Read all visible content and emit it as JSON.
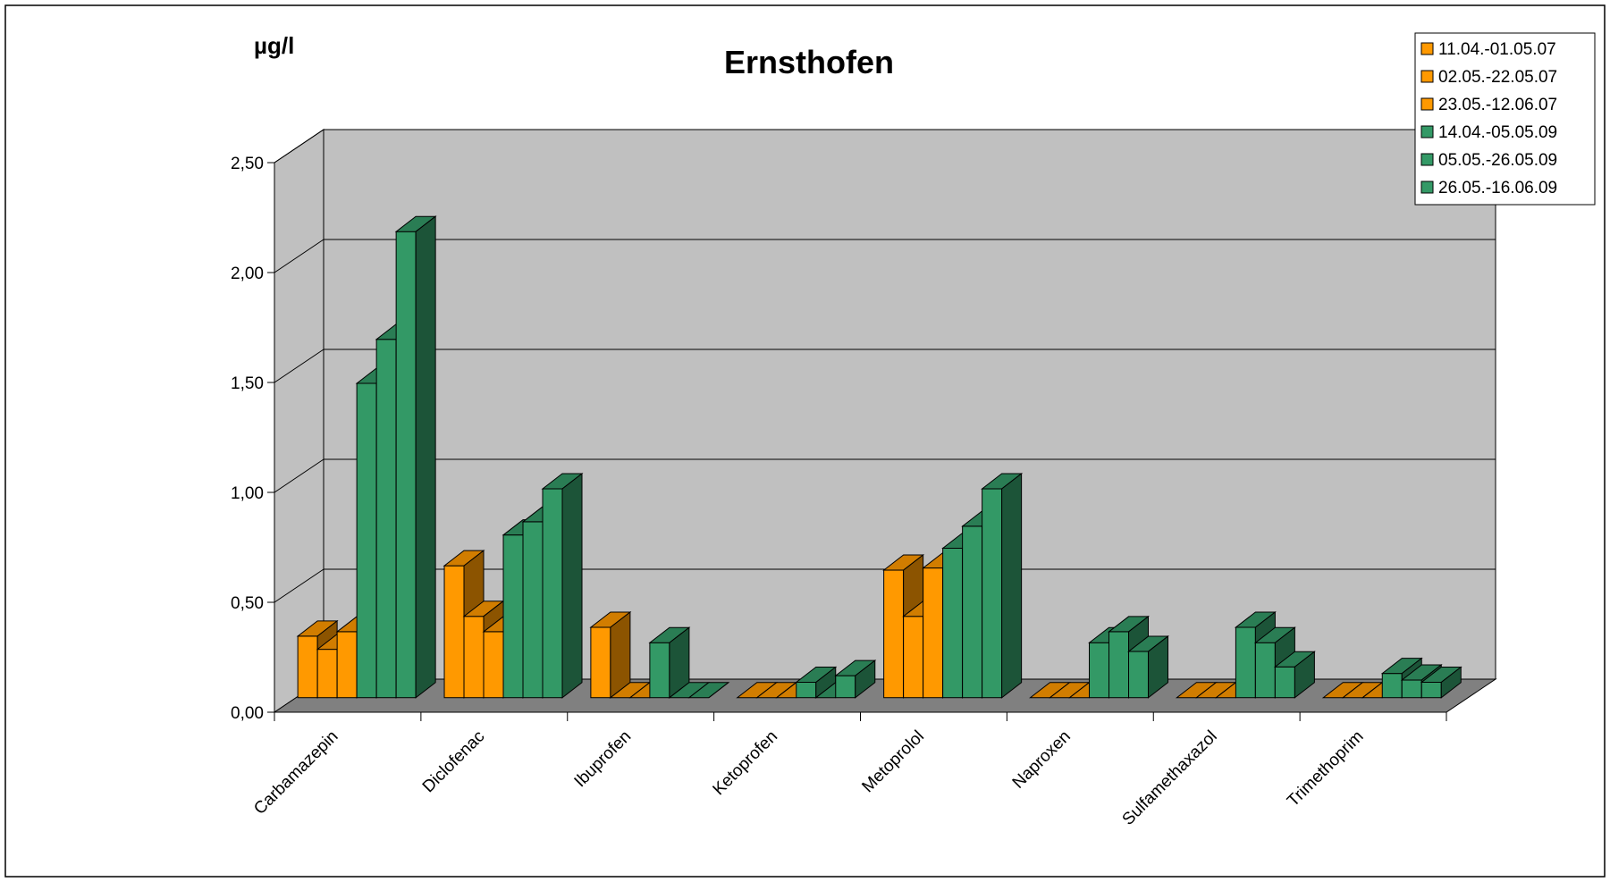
{
  "chart_data": {
    "type": "bar",
    "title": "Ernsthofen",
    "ylabel": "µg/l",
    "xlabel": "",
    "ylim": [
      0,
      2.5
    ],
    "yticks": [
      "0,00",
      "0,50",
      "1,00",
      "1,50",
      "2,00",
      "2,50"
    ],
    "ytick_values": [
      0,
      0.5,
      1.0,
      1.5,
      2.0,
      2.5
    ],
    "grid": true,
    "legend_position": "top-right",
    "categories": [
      "Carbamazepin",
      "Diclofenac",
      "Ibuprofen",
      "Ketoprofen",
      "Metoprolol",
      "Naproxen",
      "Sulfamethaxazol",
      "Trimethoprim"
    ],
    "series": [
      {
        "name": "11.04.-01.05.07",
        "color": "#FF9900",
        "values": [
          0.28,
          0.6,
          0.32,
          0,
          0.58,
          0,
          0,
          0
        ]
      },
      {
        "name": "02.05.-22.05.07",
        "color": "#FF9900",
        "values": [
          0.22,
          0.37,
          0,
          0,
          0.37,
          0,
          0,
          0
        ]
      },
      {
        "name": "23.05.-12.06.07",
        "color": "#FF9900",
        "values": [
          0.3,
          0.3,
          0,
          0,
          0.59,
          0,
          0,
          0
        ]
      },
      {
        "name": "14.04.-05.05.09",
        "color": "#339966",
        "values": [
          1.43,
          0.74,
          0.25,
          0.07,
          0.68,
          0.25,
          0.32,
          0.11
        ]
      },
      {
        "name": "05.05.-26.05.09",
        "color": "#339966",
        "values": [
          1.63,
          0.8,
          0,
          0,
          0.78,
          0.3,
          0.25,
          0.08
        ]
      },
      {
        "name": "26.05.-16.06.09",
        "color": "#339966",
        "values": [
          2.12,
          0.95,
          0,
          0.1,
          0.95,
          0.21,
          0.14,
          0.07
        ]
      }
    ]
  },
  "colors": {
    "wall": "#C0C0C0",
    "floor": "#808080",
    "gridline": "#000000"
  }
}
